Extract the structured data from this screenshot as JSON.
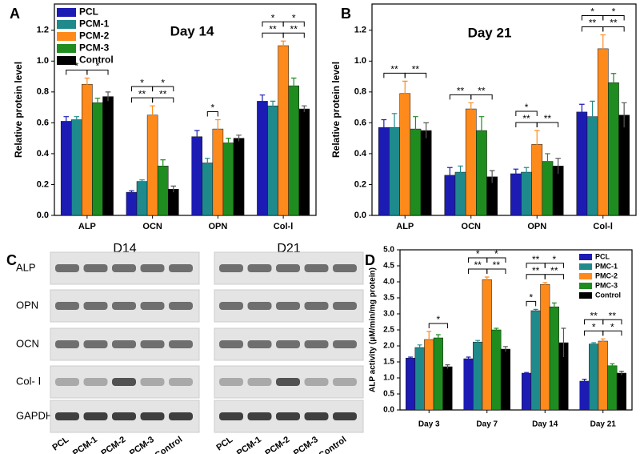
{
  "panel_labels": [
    "A",
    "B",
    "C",
    "D"
  ],
  "chart_data": [
    {
      "type": "bar",
      "title": "Day 14",
      "y_label": "Relative protein level",
      "categories": [
        "ALP",
        "OCN",
        "OPN",
        "Col-Ⅰ"
      ],
      "series": [
        {
          "name": "PCL",
          "color": "#1c1cb4",
          "values": [
            0.61,
            0.15,
            0.51,
            0.74
          ],
          "errors": [
            0.03,
            0.01,
            0.04,
            0.04
          ]
        },
        {
          "name": "PCM-1",
          "color": "#1f8a8c",
          "values": [
            0.62,
            0.22,
            0.34,
            0.71
          ],
          "errors": [
            0.02,
            0.01,
            0.03,
            0.03
          ]
        },
        {
          "name": "PCM-2",
          "color": "#ff8a1c",
          "values": [
            0.85,
            0.65,
            0.56,
            1.1
          ],
          "errors": [
            0.04,
            0.06,
            0.06,
            0.03
          ]
        },
        {
          "name": "PCM-3",
          "color": "#1f8c1f",
          "values": [
            0.73,
            0.32,
            0.47,
            0.84
          ],
          "errors": [
            0.03,
            0.04,
            0.03,
            0.05
          ]
        },
        {
          "name": "Control",
          "color": "#000000",
          "values": [
            0.77,
            0.17,
            0.5,
            0.69
          ],
          "errors": [
            0.03,
            0.02,
            0.02,
            0.02
          ]
        }
      ],
      "comparisons": [
        {
          "category": "ALP",
          "groups": [
            "PCL",
            "PCM-2"
          ],
          "label": "*"
        },
        {
          "category": "ALP",
          "groups": [
            "PCM-2",
            "Control"
          ],
          "label": "*"
        },
        {
          "category": "OCN",
          "groups": [
            "PCL",
            "PCM-2"
          ],
          "label": "**"
        },
        {
          "category": "OCN",
          "groups": [
            "PCM-2",
            "Control"
          ],
          "label": "**"
        },
        {
          "category": "OCN",
          "groups": [
            "PCL",
            "PCM-2"
          ],
          "label": "*"
        },
        {
          "category": "OCN",
          "groups": [
            "PCM-2",
            "Control"
          ],
          "label": "*"
        },
        {
          "category": "OPN",
          "groups": [
            "PCM-1",
            "PCM-2"
          ],
          "label": "*"
        },
        {
          "category": "Col-Ⅰ",
          "groups": [
            "PCL",
            "PCM-2"
          ],
          "label": "**"
        },
        {
          "category": "Col-Ⅰ",
          "groups": [
            "PCM-2",
            "Control"
          ],
          "label": "**"
        },
        {
          "category": "Col-Ⅰ",
          "groups": [
            "PCL",
            "PCM-2"
          ],
          "label": "*"
        },
        {
          "category": "Col-Ⅰ",
          "groups": [
            "PCM-2",
            "Control"
          ],
          "label": "*"
        }
      ],
      "ylim": [
        0,
        1.37
      ],
      "yticks": [
        {
          "value": 0,
          "label": "0.0"
        },
        0.2,
        0.4,
        0.6,
        0.8,
        {
          "value": 1,
          "label": "1.0"
        },
        1.2
      ],
      "legend": "upper left"
    },
    {
      "type": "bar",
      "title": "Day 21",
      "y_label": "Relative protein level",
      "categories": [
        "ALP",
        "OCN",
        "OPN",
        "Col-Ⅰ"
      ],
      "series": [
        {
          "name": "PCL",
          "color": "#1c1cb4",
          "values": [
            0.57,
            0.26,
            0.27,
            0.67
          ],
          "errors": [
            0.05,
            0.05,
            0.03,
            0.05
          ]
        },
        {
          "name": "PCM-1",
          "color": "#1f8a8c",
          "values": [
            0.57,
            0.28,
            0.28,
            0.64
          ],
          "errors": [
            0.09,
            0.04,
            0.03,
            0.1
          ]
        },
        {
          "name": "PCM-2",
          "color": "#ff8a1c",
          "values": [
            0.79,
            0.69,
            0.46,
            1.08
          ],
          "errors": [
            0.08,
            0.04,
            0.09,
            0.09
          ]
        },
        {
          "name": "PCM-3",
          "color": "#1f8c1f",
          "values": [
            0.56,
            0.55,
            0.35,
            0.86
          ],
          "errors": [
            0.08,
            0.09,
            0.05,
            0.06
          ]
        },
        {
          "name": "Control",
          "color": "#000000",
          "values": [
            0.55,
            0.25,
            0.32,
            0.65
          ],
          "errors": [
            0.05,
            0.04,
            0.05,
            0.08
          ]
        }
      ],
      "comparisons": [
        {
          "category": "ALP",
          "groups": [
            "PCL",
            "PCM-2"
          ],
          "label": "**"
        },
        {
          "category": "ALP",
          "groups": [
            "PCM-2",
            "Control"
          ],
          "label": "**"
        },
        {
          "category": "OCN",
          "groups": [
            "PCL",
            "PCM-2"
          ],
          "label": "**"
        },
        {
          "category": "OCN",
          "groups": [
            "PCM-2",
            "Control"
          ],
          "label": "**"
        },
        {
          "category": "OPN",
          "groups": [
            "PCL",
            "PCM-2"
          ],
          "label": "**"
        },
        {
          "category": "OPN",
          "groups": [
            "PCM-2",
            "Control"
          ],
          "label": "**"
        },
        {
          "category": "OPN",
          "groups": [
            "PCL",
            "PCM-2"
          ],
          "label": "*"
        },
        {
          "category": "Col-Ⅰ",
          "groups": [
            "PCL",
            "PCM-2"
          ],
          "label": "**"
        },
        {
          "category": "Col-Ⅰ",
          "groups": [
            "PCM-2",
            "Control"
          ],
          "label": "**"
        },
        {
          "category": "Col-Ⅰ",
          "groups": [
            "PCL",
            "PCM-2"
          ],
          "label": "*"
        },
        {
          "category": "Col-Ⅰ",
          "groups": [
            "PCM-2",
            "Control"
          ],
          "label": "*"
        }
      ],
      "ylim": [
        0,
        1.37
      ],
      "yticks": [
        {
          "value": 0,
          "label": "0.0"
        },
        0.2,
        0.4,
        0.6,
        0.8,
        {
          "value": 1,
          "label": "1.0"
        },
        1.2
      ]
    },
    {
      "type": "bar",
      "y_label": "ALP activity (μM/min/mg protein)",
      "categories": [
        "Day 3",
        "Day 7",
        "Day 14",
        "Day 21"
      ],
      "series": [
        {
          "name": "PCL",
          "color": "#1c1cb4",
          "values": [
            1.62,
            1.6,
            1.15,
            0.9
          ],
          "errors": [
            0.03,
            0.05,
            0.02,
            0.06
          ]
        },
        {
          "name": "PMC-1",
          "color": "#1f8a8c",
          "values": [
            1.95,
            2.12,
            3.1,
            2.06
          ],
          "errors": [
            0.08,
            0.05,
            0.04,
            0.04
          ]
        },
        {
          "name": "PMC-2",
          "color": "#ff8a1c",
          "values": [
            2.2,
            4.07,
            3.92,
            2.15
          ],
          "errors": [
            0.25,
            0.08,
            0.06,
            0.07
          ]
        },
        {
          "name": "PMC-3",
          "color": "#1f8c1f",
          "values": [
            2.25,
            2.5,
            3.22,
            1.38
          ],
          "errors": [
            0.1,
            0.05,
            0.12,
            0.06
          ]
        },
        {
          "name": "Control",
          "color": "#000000",
          "values": [
            1.35,
            1.9,
            2.1,
            1.15
          ],
          "errors": [
            0.06,
            0.08,
            0.45,
            0.06
          ]
        }
      ],
      "comparisons": [
        {
          "category": "Day 3",
          "groups": [
            "PMC-2",
            "Control"
          ],
          "label": "*"
        },
        {
          "category": "Day 7",
          "groups": [
            "PCL",
            "PMC-2"
          ],
          "label": "**"
        },
        {
          "category": "Day 7",
          "groups": [
            "PMC-2",
            "Control"
          ],
          "label": "**"
        },
        {
          "category": "Day 7",
          "groups": [
            "PCL",
            "PMC-2"
          ],
          "label": "*"
        },
        {
          "category": "Day 7",
          "groups": [
            "PMC-2",
            "Control"
          ],
          "label": "*"
        },
        {
          "category": "Day 14",
          "groups": [
            "PCL",
            "PMC-1"
          ],
          "label": "*"
        },
        {
          "category": "Day 14",
          "groups": [
            "PCL",
            "PMC-2"
          ],
          "label": "**"
        },
        {
          "category": "Day 14",
          "groups": [
            "PMC-2",
            "Control"
          ],
          "label": "**"
        },
        {
          "category": "Day 14",
          "groups": [
            "PCL",
            "PMC-2"
          ],
          "label": "**"
        },
        {
          "category": "Day 14",
          "groups": [
            "PMC-2",
            "Control"
          ],
          "label": "*"
        },
        {
          "category": "Day 21",
          "groups": [
            "PCL",
            "PMC-2"
          ],
          "label": "*"
        },
        {
          "category": "Day 21",
          "groups": [
            "PMC-2",
            "Control"
          ],
          "label": "*"
        },
        {
          "category": "Day 21",
          "groups": [
            "PCL",
            "PMC-2"
          ],
          "label": "**"
        },
        {
          "category": "Day 21",
          "groups": [
            "PMC-2",
            "Control"
          ],
          "label": "**"
        }
      ],
      "ylim": [
        0,
        5
      ],
      "yticks": [
        {
          "value": 0,
          "label": "0.0"
        },
        0.5,
        {
          "value": 1,
          "label": "1.0"
        },
        1.5,
        {
          "value": 2,
          "label": "2.0"
        },
        2.5,
        {
          "value": 3,
          "label": "3.0"
        },
        3.5,
        {
          "value": 4,
          "label": "4.0"
        },
        4.5,
        {
          "value": 5,
          "label": "5.0"
        }
      ],
      "legend": "upper right"
    }
  ],
  "blot": {
    "columns": [
      "D14",
      "D21"
    ],
    "rows": [
      "ALP",
      "OPN",
      "OCN",
      "Col- Ⅰ",
      "GAPDH"
    ],
    "lanes": [
      "PCL",
      "PCM-1",
      "PCM-2",
      "PCM-3",
      "Control"
    ]
  }
}
